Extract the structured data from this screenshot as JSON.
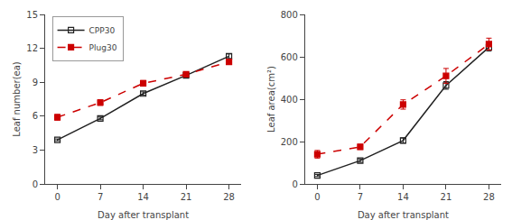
{
  "chart_data": [
    {
      "type": "line",
      "x": [
        0,
        7,
        14,
        21,
        28
      ],
      "x_label": "Day after transplant",
      "y_label": "Leaf number(ea)",
      "xlim": [
        -2,
        30
      ],
      "xticks": [
        0,
        7,
        14,
        21,
        28
      ],
      "ylim": [
        0,
        15
      ],
      "yticks": [
        0,
        3,
        6,
        9,
        12,
        15
      ],
      "grid": false,
      "legend": "upper left",
      "series": [
        {
          "name": "CPP30",
          "color": "#222222",
          "marker": "square-open",
          "line_style": "solid",
          "values": [
            3.9,
            5.8,
            8.0,
            9.6,
            11.3
          ],
          "errors": [
            0.08,
            0.12,
            0.15,
            0.12,
            0.2
          ]
        },
        {
          "name": "Plug30",
          "color": "#cc0000",
          "marker": "square",
          "line_style": "dash",
          "values": [
            5.9,
            7.2,
            8.9,
            9.7,
            10.8
          ],
          "errors": [
            0.25,
            0.25,
            0.25,
            0.18,
            0.18
          ]
        }
      ]
    },
    {
      "type": "line",
      "x": [
        0,
        7,
        14,
        21,
        28
      ],
      "x_label": "Day after transplant",
      "y_label": "Leaf area(cm²)",
      "xlim": [
        -2,
        30
      ],
      "xticks": [
        0,
        7,
        14,
        21,
        28
      ],
      "ylim": [
        0,
        800
      ],
      "yticks": [
        0,
        200,
        400,
        600,
        800
      ],
      "grid": false,
      "series": [
        {
          "name": "CPP30",
          "color": "#222222",
          "marker": "square-open",
          "line_style": "solid",
          "values": [
            40,
            110,
            205,
            465,
            645
          ],
          "errors": [
            5,
            8,
            12,
            18,
            18
          ]
        },
        {
          "name": "Plug30",
          "color": "#cc0000",
          "marker": "square",
          "line_style": "dash",
          "values": [
            140,
            175,
            375,
            510,
            660
          ],
          "errors": [
            18,
            12,
            22,
            35,
            28
          ]
        }
      ]
    }
  ]
}
